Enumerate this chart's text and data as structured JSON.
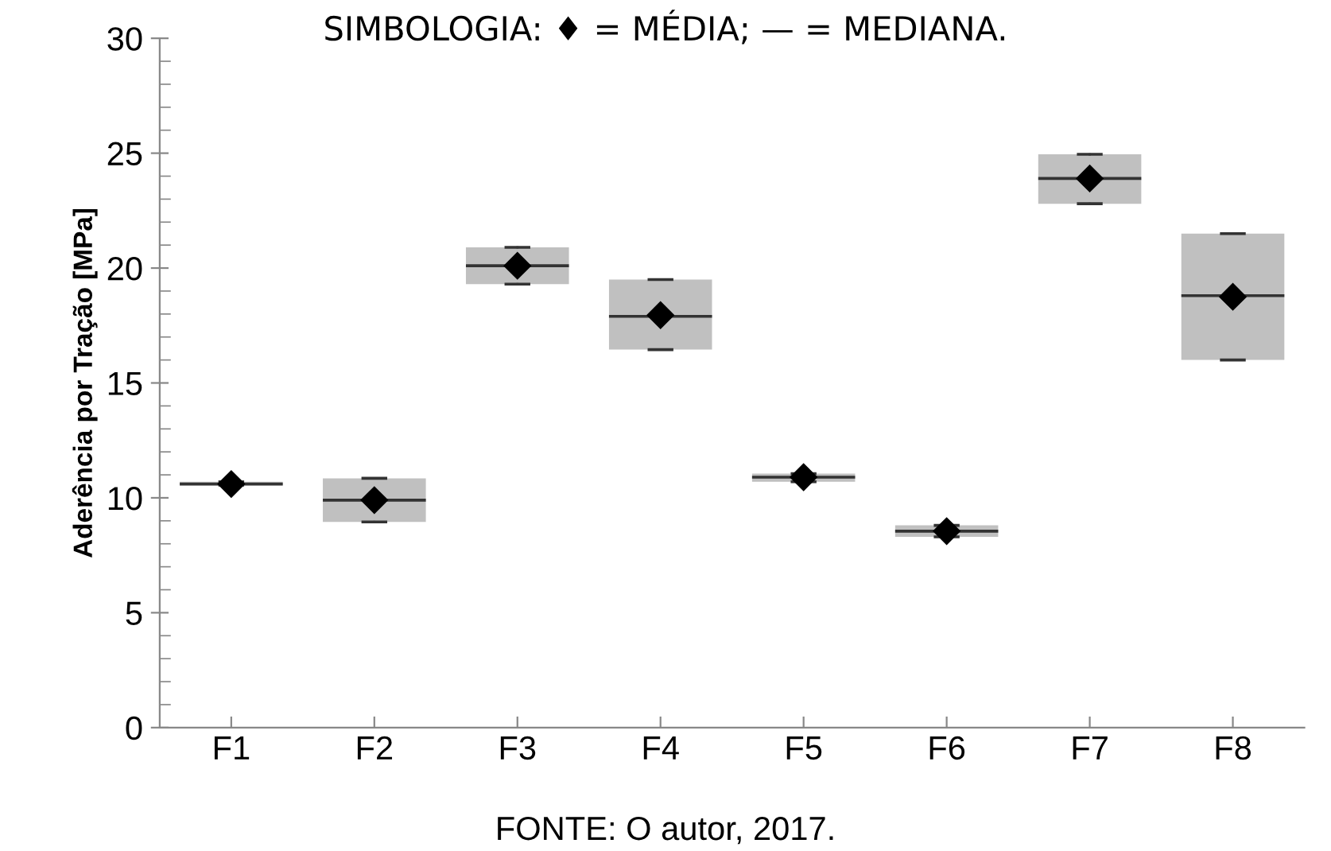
{
  "chart_data": {
    "type": "box",
    "title": "SIMBOLOGIA: ♦ = MÉDIA; — = MEDIANA.",
    "ylabel": "Aderência por Tração [MPa]",
    "categories": [
      "F1",
      "F2",
      "F3",
      "F4",
      "F5",
      "F6",
      "F7",
      "F8"
    ],
    "color": "#c0c0c0",
    "marker": "diamond",
    "boxes": [
      {
        "low": 10.55,
        "q1": 10.55,
        "median": 10.6,
        "q3": 10.7,
        "high": 10.7,
        "mean": 10.6
      },
      {
        "low": 8.95,
        "q1": 8.95,
        "median": 9.9,
        "q3": 10.85,
        "high": 10.85,
        "mean": 9.9
      },
      {
        "low": 19.3,
        "q1": 19.3,
        "median": 20.1,
        "q3": 20.9,
        "high": 20.9,
        "mean": 20.1
      },
      {
        "low": 16.45,
        "q1": 16.45,
        "median": 17.9,
        "q3": 19.5,
        "high": 19.5,
        "mean": 17.95
      },
      {
        "low": 10.7,
        "q1": 10.7,
        "median": 10.9,
        "q3": 11.05,
        "high": 11.05,
        "mean": 10.9
      },
      {
        "low": 8.3,
        "q1": 8.3,
        "median": 8.55,
        "q3": 8.8,
        "high": 8.8,
        "mean": 8.55
      },
      {
        "low": 22.8,
        "q1": 22.8,
        "median": 23.9,
        "q3": 24.95,
        "high": 24.95,
        "mean": 23.9
      },
      {
        "low": 16.0,
        "q1": 16.0,
        "median": 18.8,
        "q3": 21.5,
        "high": 21.5,
        "mean": 18.75
      }
    ],
    "ylim": [
      0,
      30
    ],
    "yticks": [
      0,
      5,
      10,
      15,
      20,
      25,
      30
    ],
    "grid": false,
    "legend": false,
    "annotations": [
      "FONTE: O autor, 2017."
    ]
  }
}
